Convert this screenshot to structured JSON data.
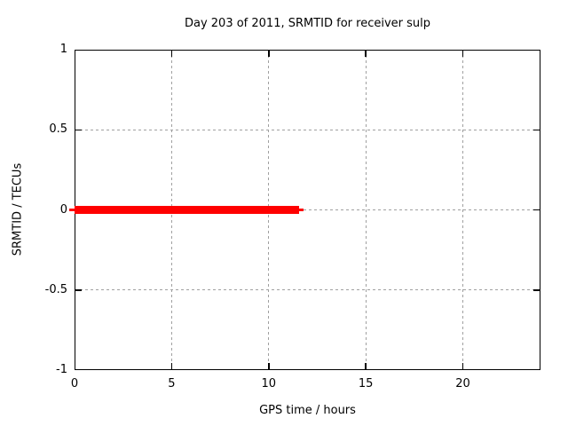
{
  "title": "Day 203 of 2011, SRMTID for receiver sulp",
  "chart_data": {
    "type": "line",
    "title": "Day 203 of 2011, SRMTID for receiver sulp",
    "xlabel": "GPS time / hours",
    "ylabel": "SRMTID / TECUs",
    "xlim": [
      0,
      24
    ],
    "ylim": [
      -1,
      1
    ],
    "xticks": [
      0,
      5,
      10,
      15,
      20
    ],
    "yticks": [
      -1,
      -0.5,
      0,
      0.5,
      1
    ],
    "grid": "dotted",
    "legend": "none",
    "colors": {
      "series": "#ff0000",
      "grid": "#a0a0a0",
      "axis": "#000000",
      "background": "#ffffff",
      "text": "#000000"
    },
    "series": [
      {
        "name": "SRMTID",
        "color": "#ff0000",
        "y_value": 0,
        "x_start": 0,
        "x_end_thick": 11.55,
        "x_end_thin": 11.8
      }
    ]
  }
}
